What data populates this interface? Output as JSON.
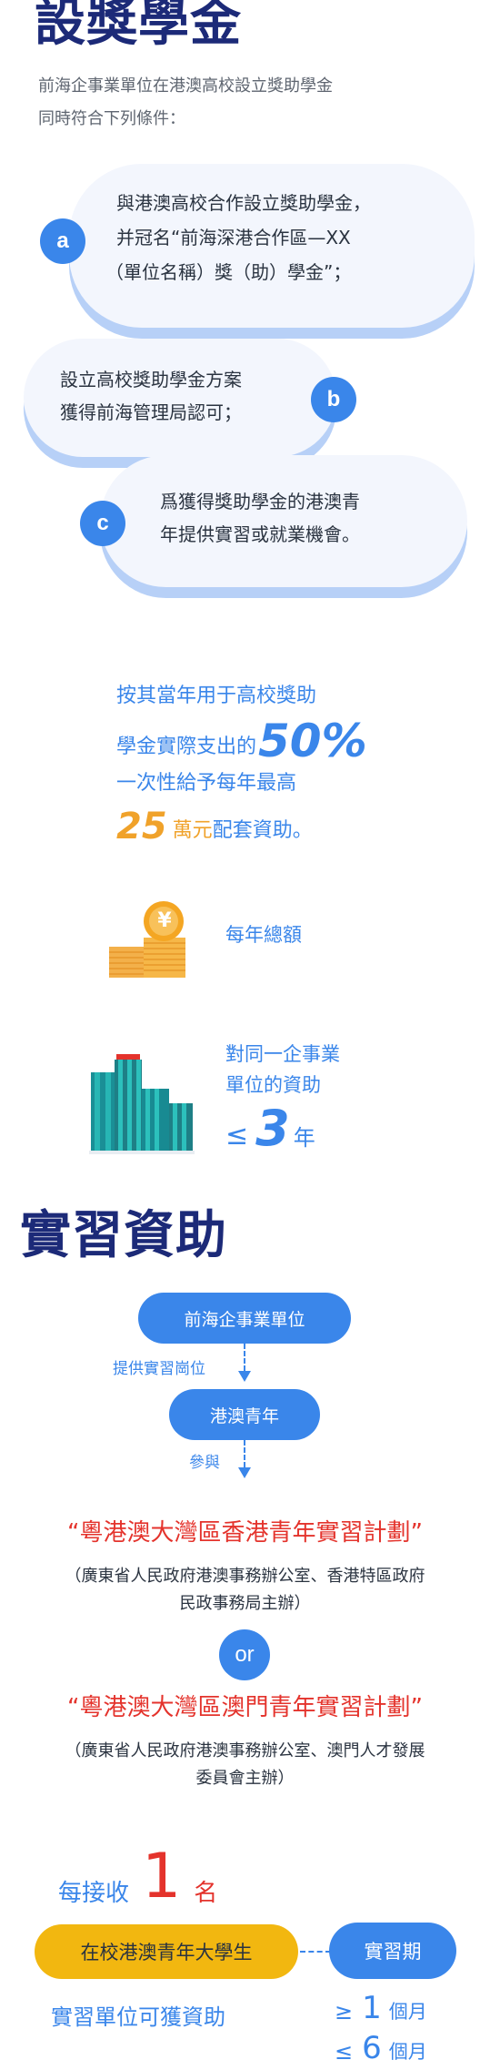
{
  "section1": {
    "title": "設獎學金",
    "intro_line1": "前海企事業單位在港澳高校設立獎助學金",
    "intro_line2": "同時符合下列條件：",
    "conditions": [
      {
        "badge": "a",
        "line1": "與港澳高校合作設立獎助學金，",
        "line2": "并冠名“前海深港合作區—XX",
        "line3": "（單位名稱）獎（助）學金”；"
      },
      {
        "badge": "b",
        "line1": "設立高校獎助學金方案",
        "line2": "獲得前海管理局認可；"
      },
      {
        "badge": "c",
        "line1": "爲獲得獎助學金的港澳青",
        "line2": "年提供實習或就業機會。"
      }
    ]
  },
  "subsidy": {
    "line1": "按其當年用于高校獎助",
    "line2_prefix": "學金實際支出的",
    "percent": "50%",
    "line3": "一次性給予每年最高",
    "amount": "25",
    "unit": "萬元",
    "line4_suffix": "配套資助。",
    "annual_total_label": "每年總額",
    "same_unit_line1": "對同一企事業",
    "same_unit_line2": "單位的資助",
    "leq": "≤",
    "years": "3",
    "years_unit": "年",
    "coin_symbol": "¥"
  },
  "section2": {
    "title": "實習資助",
    "flow": {
      "node1": "前海企事業單位",
      "edge1": "提供實習崗位",
      "node2": "港澳青年",
      "edge2": "參與"
    },
    "program1": "“粵港澳大灣區香港青年實習計劃”",
    "program1_org_line1": "（廣東省人民政府港澳事務辦公室、香港特區政府",
    "program1_org_line2": "民政事務局主辦）",
    "or": "or",
    "program2": "“粵港澳大灣區澳門青年實習計劃”",
    "program2_org_line1": "（廣東省人民政府港澳事務辦公室、澳門人才發展",
    "program2_org_line2": "委員會主辦）",
    "each_prefix": "每接收",
    "each_count": "1",
    "each_unit": "名",
    "student": "在校港澳青年大學生",
    "period": "實習期",
    "unit_gets": "實習單位可獲資助",
    "geq": "≥",
    "min_months": "1",
    "months_unit": "個月",
    "leq": "≤",
    "max_months": "6",
    "months_unit2": "個月"
  },
  "colors": {
    "navy": "#1c2a78",
    "blue": "#3a86ea",
    "orange": "#f0a22a",
    "red": "#e4332c",
    "bubble": "#f3f6fd"
  }
}
